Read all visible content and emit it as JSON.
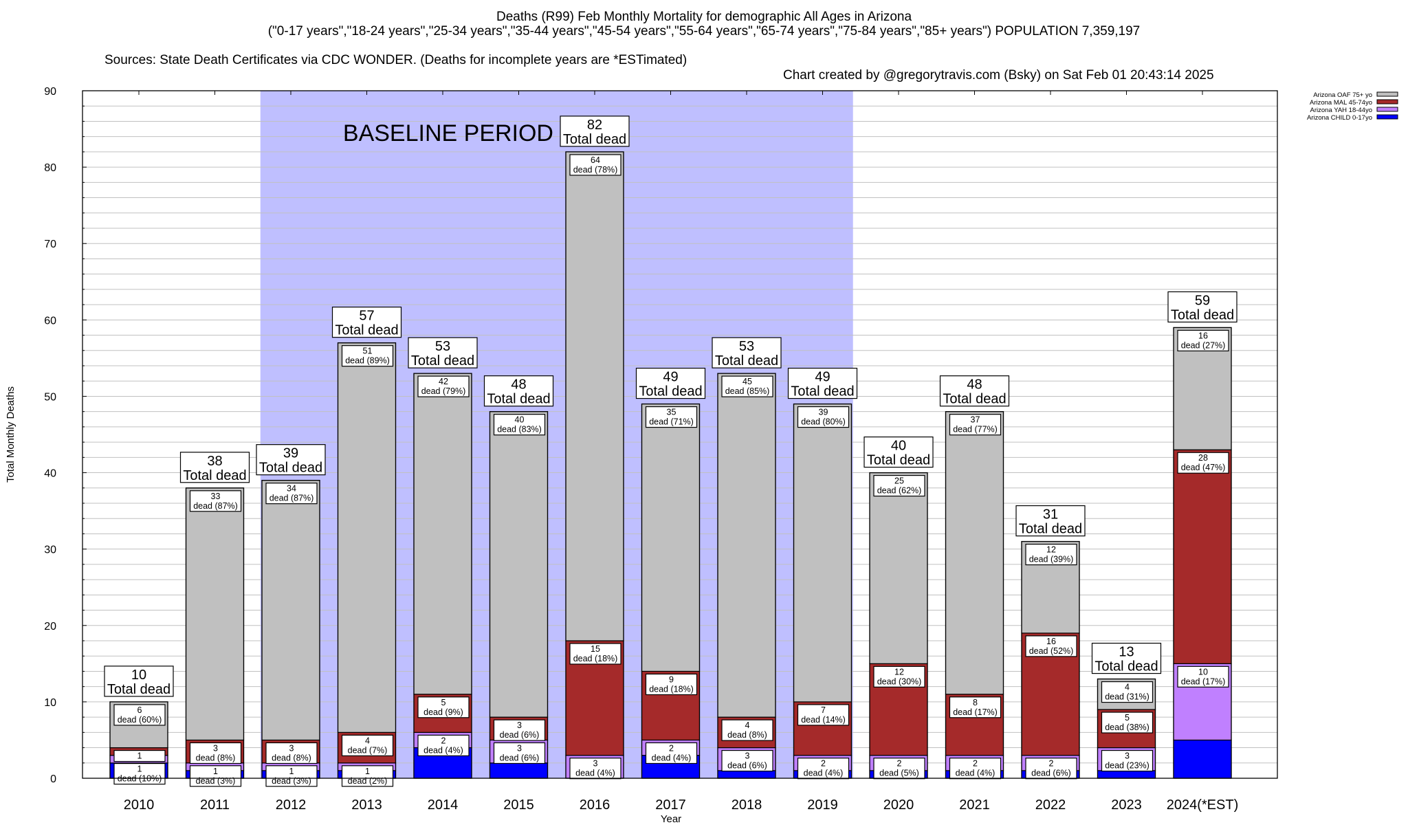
{
  "header": {
    "title": "Deaths (R99) Feb Monthly Mortality for demographic All Ages in Arizona",
    "subtitle": "(\"0-17 years\",\"18-24 years\",\"25-34 years\",\"35-44 years\",\"45-54 years\",\"55-64 years\",\"65-74 years\",\"75-84 years\",\"85+ years\") POPULATION 7,359,197",
    "sources": "Sources: State Death Certificates via CDC WONDER. (Deaths for incomplete years are *ESTimated)",
    "credit": "Chart created by @gregorytravis.com (Bsky) on Sat Feb 01 20:43:14 2025"
  },
  "chart_data": {
    "type": "bar",
    "stacked": true,
    "title": "Deaths (R99) Feb Monthly Mortality for demographic All Ages in Arizona",
    "xlabel": "Year",
    "ylabel": "Total Monthly Deaths",
    "ylim": [
      0,
      90
    ],
    "yticks": [
      0,
      10,
      20,
      30,
      40,
      50,
      60,
      70,
      80,
      90
    ],
    "grid": true,
    "legend_position": "top-right",
    "annotation": "BASELINE PERIOD",
    "baseline_range": [
      "2012",
      "2019"
    ],
    "total_label_suffix": "Total dead",
    "segment_label_word": "dead",
    "categories": [
      "2010",
      "2011",
      "2012",
      "2013",
      "2014",
      "2015",
      "2016",
      "2017",
      "2018",
      "2019",
      "2020",
      "2021",
      "2022",
      "2023",
      "2024(*EST)"
    ],
    "totals": [
      10,
      38,
      39,
      57,
      53,
      48,
      82,
      49,
      53,
      49,
      40,
      48,
      31,
      13,
      59
    ],
    "series": [
      {
        "name": "Arizona CHILD 0-17yo",
        "color": "#0000ff",
        "values": [
          2,
          1,
          1,
          1,
          4,
          2,
          0,
          3,
          1,
          1,
          1,
          1,
          1,
          1,
          5
        ],
        "labels": [
          null,
          null,
          null,
          null,
          null,
          null,
          null,
          null,
          null,
          null,
          null,
          null,
          null,
          null,
          null
        ]
      },
      {
        "name": "Arizona YAH 18-44yo",
        "color": "#c080ff",
        "values": [
          1,
          1,
          1,
          1,
          2,
          3,
          3,
          2,
          3,
          2,
          2,
          2,
          2,
          3,
          10
        ],
        "labels": [
          "1\ndead (10%)",
          "1\ndead (3%)",
          "1\ndead (3%)",
          "1\ndead (2%)",
          "2\ndead (4%)",
          "3\ndead (6%)",
          "3\ndead (4%)",
          "2\ndead (4%)",
          "3\ndead (6%)",
          "2\ndead (4%)",
          "2\ndead (5%)",
          "2\ndead (4%)",
          "2\ndead (6%)",
          "3\ndead (23%)",
          "10\ndead (17%)"
        ]
      },
      {
        "name": "Arizona MAL 45-74yo",
        "color": "#a52a2a",
        "values": [
          1,
          3,
          3,
          4,
          5,
          3,
          15,
          9,
          4,
          7,
          12,
          8,
          16,
          5,
          28
        ],
        "labels": [
          "1",
          "3\ndead (8%)",
          "3\ndead (8%)",
          "4\ndead (7%)",
          "5\ndead (9%)",
          "3\ndead (6%)",
          "15\ndead (18%)",
          "9\ndead (18%)",
          "4\ndead (8%)",
          "7\ndead (14%)",
          "12\ndead (30%)",
          "8\ndead (17%)",
          "16\ndead (52%)",
          "5\ndead (38%)",
          "28\ndead (47%)"
        ]
      },
      {
        "name": "Arizona OAF 75+ yo",
        "color": "#c0c0c0",
        "values": [
          6,
          33,
          34,
          51,
          42,
          40,
          64,
          35,
          45,
          39,
          25,
          37,
          12,
          4,
          16
        ],
        "labels": [
          "6\ndead (60%)",
          "33\ndead (87%)",
          "34\ndead (87%)",
          "51\ndead (89%)",
          "42\ndead (79%)",
          "40\ndead (83%)",
          "64\ndead (78%)",
          "35\ndead (71%)",
          "45\ndead (85%)",
          "39\ndead (80%)",
          "25\ndead (62%)",
          "37\ndead (77%)",
          "12\ndead (39%)",
          "4\ndead (31%)",
          "16\ndead (27%)"
        ]
      }
    ],
    "legend_order": [
      "Arizona OAF 75+ yo",
      "Arizona MAL 45-74yo",
      "Arizona YAH 18-44yo",
      "Arizona CHILD 0-17yo"
    ],
    "colors": {
      "baseline_shade": "#bfbfff",
      "grid": "#c0c0c0"
    }
  }
}
